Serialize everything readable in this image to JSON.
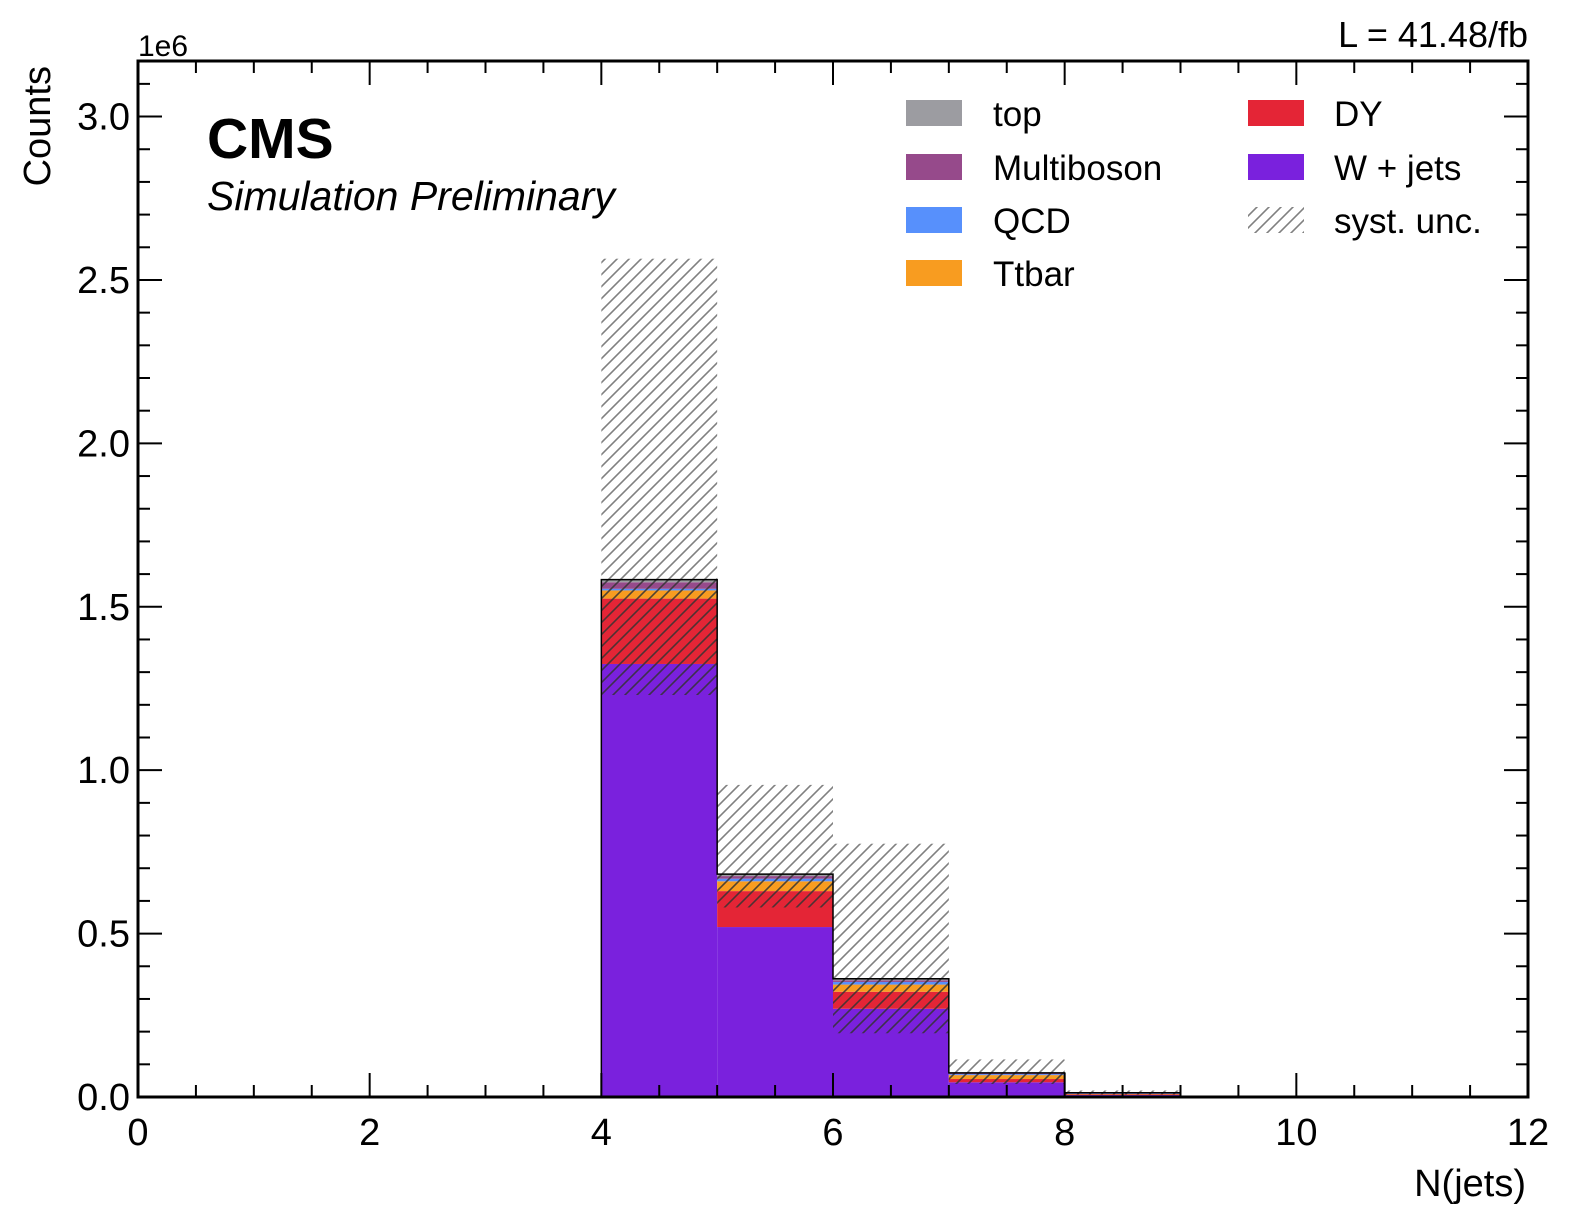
{
  "lumi_label": "L = 41.48/fb",
  "experiment_label": "CMS",
  "status_label": "Simulation Preliminary",
  "colors": {
    "top": "#9c9ca1",
    "Multiboson": "#964a8b",
    "QCD": "#5790fc",
    "Ttbar": "#f89c20",
    "DY": "#e42536",
    "W + jets": "#7a21dd",
    "syst_hatch": "#808080"
  },
  "chart_data": {
    "type": "bar",
    "stacked": true,
    "histogram": true,
    "xlabel": "N(jets)",
    "ylabel": "Counts",
    "y_multiplier_label": "1e6",
    "xlim": [
      0,
      12
    ],
    "ylim": [
      0,
      3.17
    ],
    "x_ticks": [
      0,
      2,
      4,
      6,
      8,
      10,
      12
    ],
    "y_ticks": [
      0.0,
      0.5,
      1.0,
      1.5,
      2.0,
      2.5,
      3.0
    ],
    "y_tick_labels": [
      "0.0",
      "0.5",
      "1.0",
      "1.5",
      "2.0",
      "2.5",
      "3.0"
    ],
    "bin_edges": [
      4,
      5,
      6,
      7,
      8,
      9
    ],
    "legend_position": "top-right",
    "grid": false,
    "series": [
      {
        "name": "W + jets",
        "values": [
          1.325,
          0.52,
          0.27,
          0.045,
          0.006
        ]
      },
      {
        "name": "DY",
        "values": [
          0.2,
          0.11,
          0.052,
          0.01,
          0.002
        ]
      },
      {
        "name": "Ttbar",
        "values": [
          0.025,
          0.03,
          0.022,
          0.012,
          0.002
        ]
      },
      {
        "name": "QCD",
        "values": [
          0.005,
          0.008,
          0.008,
          0.003,
          0.001
        ]
      },
      {
        "name": "Multiboson",
        "values": [
          0.02,
          0.008,
          0.005,
          0.002,
          0.001
        ]
      },
      {
        "name": "top",
        "values": [
          0.008,
          0.006,
          0.005,
          0.002,
          0.001
        ]
      }
    ],
    "syst_unc": {
      "name": "syst. unc.",
      "up": [
        2.565,
        0.955,
        0.775,
        0.115,
        0.02
      ],
      "down": [
        1.23,
        0.58,
        0.195,
        0.04,
        0.008
      ]
    },
    "legend_entries": [
      "top",
      "DY",
      "Multiboson",
      "W + jets",
      "QCD",
      "syst. unc.",
      "Ttbar"
    ]
  }
}
